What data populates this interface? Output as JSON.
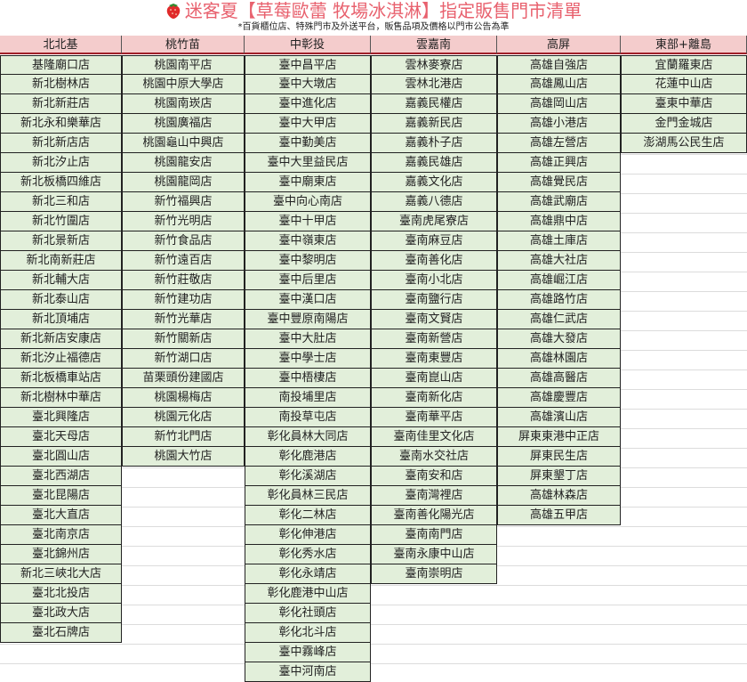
{
  "title": "迷客夏【草莓歐蕾 牧場冰淇淋】指定販售門市清單",
  "subtitle": "*百貨櫃位店、特殊門市及外送平台，販售品項及價格以門市公告為準",
  "colors": {
    "title": "#e8616e",
    "header_bg": "#f4cccc",
    "cell_bg": "#e2efda",
    "header_border": "#a0202a"
  },
  "icons": {
    "title_icon": "strawberry-icon"
  },
  "columns": [
    {
      "header": "北北基",
      "stores": [
        "基隆廟口店",
        "新北樹林店",
        "新北新莊店",
        "新北永和樂華店",
        "新北新店店",
        "新北汐止店",
        "新北板橋四維店",
        "新北三和店",
        "新北竹圍店",
        "新北景新店",
        "新北南新莊店",
        "新北輔大店",
        "新北泰山店",
        "新北頂埔店",
        "新北新店安康店",
        "新北汐止福德店",
        "新北板橋車站店",
        "新北樹林中華店",
        "臺北興隆店",
        "臺北天母店",
        "臺北圓山店",
        "臺北西湖店",
        "臺北昆陽店",
        "臺北大直店",
        "臺北南京店",
        "臺北錦州店",
        "新北三峽北大店",
        "臺北北投店",
        "臺北政大店",
        "臺北石牌店"
      ]
    },
    {
      "header": "桃竹苗",
      "stores": [
        "桃園南平店",
        "桃園中原大學店",
        "桃園南崁店",
        "桃園廣福店",
        "桃園龜山中興店",
        "桃園龍安店",
        "桃園龍岡店",
        "新竹福興店",
        "新竹光明店",
        "新竹食品店",
        "新竹遠百店",
        "新竹莊敬店",
        "新竹建功店",
        "新竹光華店",
        "新竹關新店",
        "新竹湖口店",
        "苗栗頭份建國店",
        "桃園楊梅店",
        "桃園元化店",
        "新竹北門店",
        "桃園大竹店"
      ]
    },
    {
      "header": "中彰投",
      "stores": [
        "臺中昌平店",
        "臺中大墩店",
        "臺中進化店",
        "臺中大甲店",
        "臺中勤美店",
        "臺中大里益民店",
        "臺中廟東店",
        "臺中向心南店",
        "臺中十甲店",
        "臺中嶺東店",
        "臺中黎明店",
        "臺中后里店",
        "臺中漢口店",
        "臺中豐原南陽店",
        "臺中大肚店",
        "臺中學士店",
        "臺中梧棲店",
        "南投埔里店",
        "南投草屯店",
        "彰化員林大同店",
        "彰化鹿港店",
        "彰化溪湖店",
        "彰化員林三民店",
        "彰化二林店",
        "彰化伸港店",
        "彰化秀水店",
        "彰化永靖店",
        "彰化鹿港中山店",
        "彰化社頭店",
        "彰化北斗店",
        "臺中霧峰店",
        "臺中河南店"
      ]
    },
    {
      "header": "雲嘉南",
      "stores": [
        "雲林麥寮店",
        "雲林北港店",
        "嘉義民權店",
        "嘉義新民店",
        "嘉義朴子店",
        "嘉義民雄店",
        "嘉義文化店",
        "嘉義八德店",
        "臺南虎尾寮店",
        "臺南麻豆店",
        "臺南善化店",
        "臺南小北店",
        "臺南鹽行店",
        "臺南文賢店",
        "臺南新營店",
        "臺南東豐店",
        "臺南崑山店",
        "臺南新化店",
        "臺南華平店",
        "臺南佳里文化店",
        "臺南水交社店",
        "臺南安和店",
        "臺南灣裡店",
        "臺南善化陽光店",
        "臺南南門店",
        "臺南永康中山店",
        "臺南崇明店"
      ]
    },
    {
      "header": "高屏",
      "stores": [
        "高雄自強店",
        "高雄鳳山店",
        "高雄岡山店",
        "高雄小港店",
        "高雄左營店",
        "高雄正興店",
        "高雄覺民店",
        "高雄武廟店",
        "高雄鼎中店",
        "高雄土庫店",
        "高雄大社店",
        "高雄崛江店",
        "高雄路竹店",
        "高雄仁武店",
        "高雄大發店",
        "高雄林園店",
        "高雄高醫店",
        "高雄慶豐店",
        "高雄濱山店",
        "屏東東港中正店",
        "屏東民生店",
        "屏東墾丁店",
        "高雄林森店",
        "高雄五甲店"
      ]
    },
    {
      "header": "東部+離島",
      "stores": [
        "宜蘭羅東店",
        "花蓮中山店",
        "臺東中華店",
        "金門金城店",
        "澎湖馬公民生店"
      ]
    }
  ]
}
